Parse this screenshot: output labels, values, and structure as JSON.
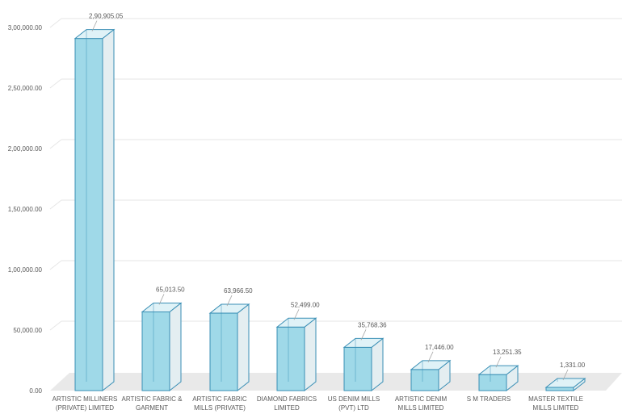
{
  "chart_data": {
    "type": "bar",
    "style": "3d-column",
    "categories": [
      [
        "ARTISTIC MILLINERS",
        "(PRIVATE) LIMITED"
      ],
      [
        "ARTISTIC FABRIC &",
        "GARMENT"
      ],
      [
        "ARTISTIC FABRIC",
        "MILLS (PRIVATE)"
      ],
      [
        "DIAMOND FABRICS",
        "LIMITED"
      ],
      [
        "US DENIM MILLS",
        "(PVT) LTD"
      ],
      [
        "ARTISTIC DENIM",
        "MILLS LIMITED"
      ],
      [
        "S M TRADERS"
      ],
      [
        "MASTER TEXTILE",
        "MILLS LIMITED"
      ]
    ],
    "values": [
      290905.05,
      65013.5,
      63966.5,
      52499.0,
      35768.36,
      17446.0,
      13251.35,
      1331.0
    ],
    "data_labels": [
      "2,90,905.05",
      "65,013.50",
      "63,966.50",
      "52,499.00",
      "35,768.36",
      "17,446.00",
      "13,251.35",
      "1,331.00"
    ],
    "ylim": [
      0,
      300000
    ],
    "yticks": [
      0,
      50000,
      100000,
      150000,
      200000,
      250000,
      300000
    ],
    "ytick_labels": [
      "0.00",
      "50,000.00",
      "1,00,000.00",
      "1,50,000.00",
      "2,00,000.00",
      "2,50,000.00",
      "3,00,000.00"
    ],
    "grid": true,
    "colors": {
      "bar_front": "#9fd9e8",
      "bar_side": "#e4eef1",
      "bar_top": "#dff2f7",
      "bar_edge": "#3a8fb5",
      "grid": "#e6e6e6",
      "floor": "#e9e9e9"
    }
  }
}
